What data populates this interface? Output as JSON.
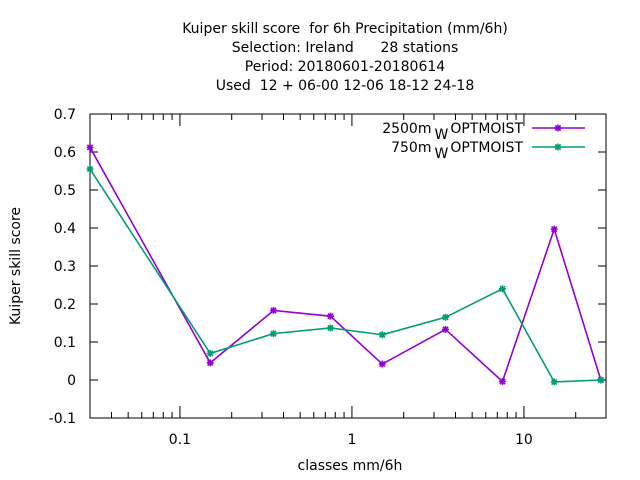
{
  "chart_data": {
    "type": "line",
    "title_lines": [
      "Kuiper skill score  for 6h Precipitation (mm/6h)",
      "Selection: Ireland      28 stations",
      "Period: 20180601-20180614",
      "Used  12 + 06-00 12-06 18-12 24-18"
    ],
    "xlabel": "classes mm/6h",
    "ylabel": "Kuiper skill score",
    "x_scale": "log",
    "xlim": [
      0.03,
      30
    ],
    "ylim": [
      -0.1,
      0.7
    ],
    "x_ticks": [
      0.1,
      1,
      10
    ],
    "x_tick_labels": [
      "0.1",
      "1",
      "10"
    ],
    "y_ticks": [
      -0.1,
      0,
      0.1,
      0.2,
      0.3,
      0.4,
      0.5,
      0.6,
      0.7
    ],
    "y_tick_labels": [
      "-0.1",
      "0",
      "0.1",
      "0.2",
      "0.3",
      "0.4",
      "0.5",
      "0.6",
      "0.7"
    ],
    "grid": false,
    "legend_position": "top-right",
    "x": [
      0.03,
      0.15,
      0.35,
      0.75,
      1.5,
      3.5,
      7.5,
      15,
      28
    ],
    "series": [
      {
        "name": "2500m",
        "name_sub": "W",
        "name_suffix": "OPTMOIST",
        "color": "#9400d3",
        "values": [
          0.612,
          0.045,
          0.183,
          0.168,
          0.042,
          0.133,
          -0.004,
          0.397,
          0.0
        ]
      },
      {
        "name": "750m",
        "name_sub": "W",
        "name_suffix": "OPTMOIST",
        "color": "#009e73",
        "values": [
          0.555,
          0.07,
          0.122,
          0.137,
          0.119,
          0.165,
          0.24,
          -0.005,
          0.0
        ]
      }
    ]
  }
}
